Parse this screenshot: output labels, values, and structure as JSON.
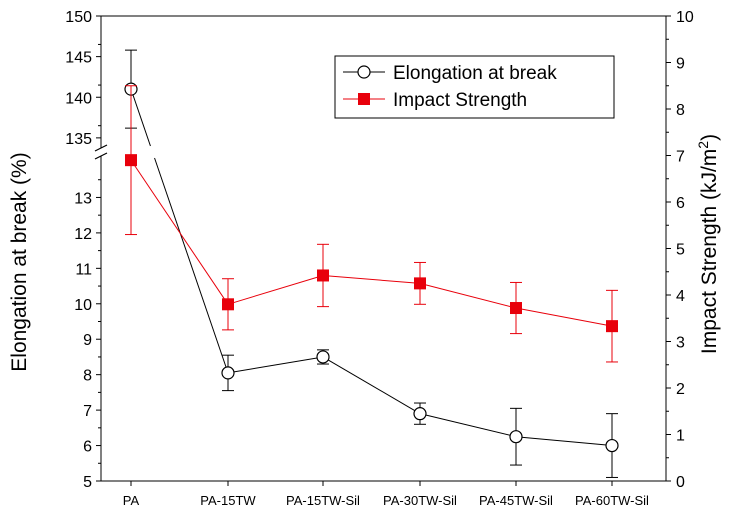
{
  "chart_data": {
    "type": "line",
    "categories": [
      "PA",
      "PA-15TW",
      "PA-15TW-Sil",
      "PA-30TW-Sil",
      "PA-45TW-Sil",
      "PA-60TW-Sil"
    ],
    "ylabel": "Elongation at break (%)",
    "y2label": "Impact Strength (kJ/m²)",
    "y_left": {
      "broken": true,
      "lower_segment": [
        5,
        14
      ],
      "upper_segment": [
        134,
        150
      ],
      "ticks_lower": [
        5,
        6,
        7,
        8,
        9,
        10,
        11,
        12,
        13
      ],
      "ticks_upper": [
        135,
        140,
        145,
        150
      ]
    },
    "y_right": {
      "range": [
        0,
        10
      ],
      "ticks": [
        0,
        1,
        2,
        3,
        4,
        5,
        6,
        7,
        8,
        9,
        10
      ]
    },
    "legend_position": "top-right",
    "series": [
      {
        "name": "Elongation at break",
        "axis": "left",
        "marker": "open-circle",
        "color": "#000000",
        "values": [
          141,
          8.05,
          8.5,
          6.9,
          6.25,
          6.0
        ],
        "error": [
          4.8,
          0.5,
          0.2,
          0.3,
          0.8,
          0.9
        ]
      },
      {
        "name": "Impact Strength",
        "axis": "right",
        "marker": "filled-square",
        "color": "#e8000b",
        "values": [
          6.9,
          3.8,
          4.42,
          4.25,
          3.72,
          3.33
        ],
        "error": [
          1.6,
          0.55,
          0.67,
          0.45,
          0.55,
          0.77
        ]
      }
    ]
  }
}
